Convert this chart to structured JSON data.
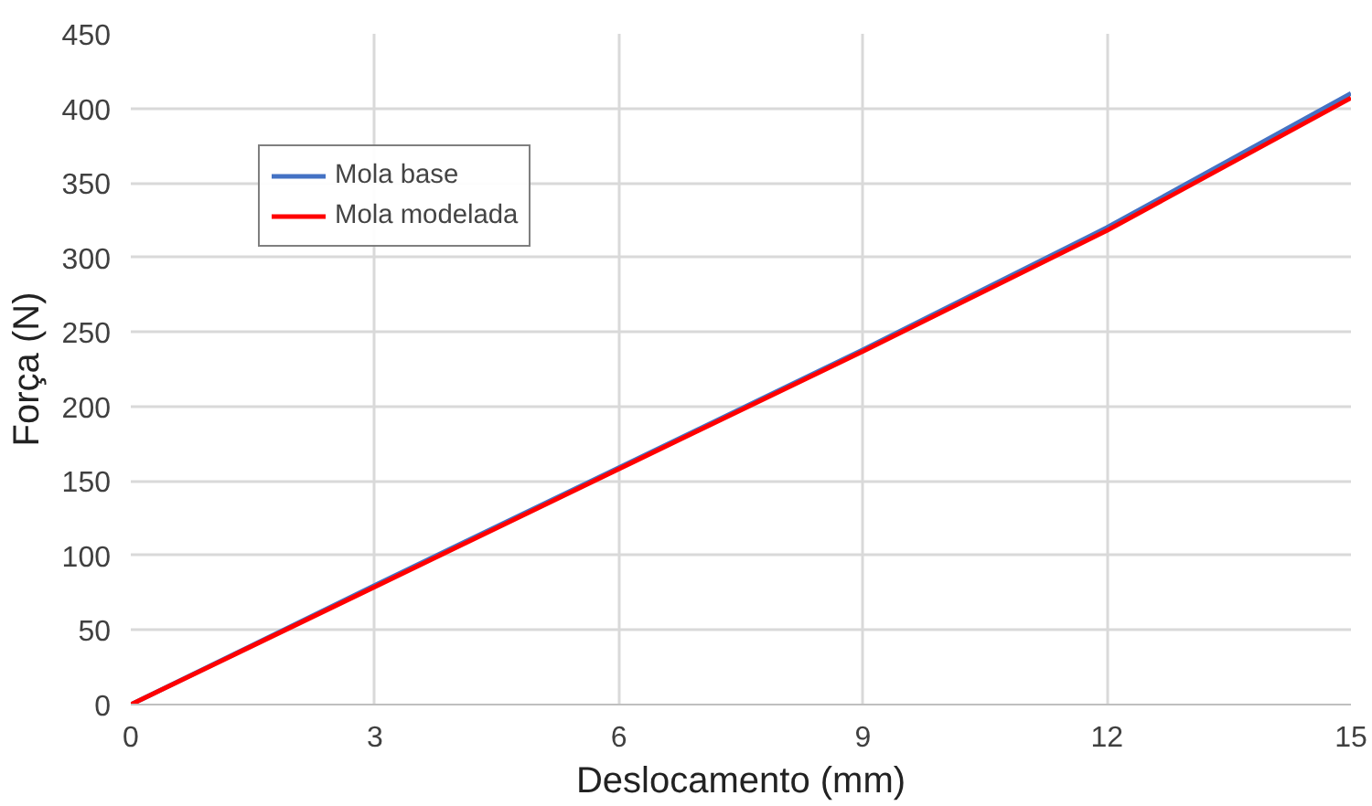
{
  "chart_data": {
    "type": "line",
    "xlabel": "Deslocamento (mm)",
    "ylabel": "Força (N)",
    "x": [
      0,
      3,
      6,
      9,
      12,
      15
    ],
    "series": [
      {
        "name": "Mola base",
        "color": "#4472c4",
        "values": [
          0,
          80,
          159,
          238,
          320,
          410
        ]
      },
      {
        "name": "Mola modelada",
        "color": "#ff0000",
        "values": [
          0,
          79,
          158,
          237,
          318,
          407
        ]
      }
    ],
    "xlim": [
      0,
      15
    ],
    "ylim": [
      0,
      450
    ],
    "xticks": [
      0,
      3,
      6,
      9,
      12,
      15
    ],
    "yticks": [
      0,
      50,
      100,
      150,
      200,
      250,
      300,
      350,
      400,
      450
    ],
    "grid": true,
    "legend": "top left",
    "marker": "none",
    "line_style": "solid"
  }
}
